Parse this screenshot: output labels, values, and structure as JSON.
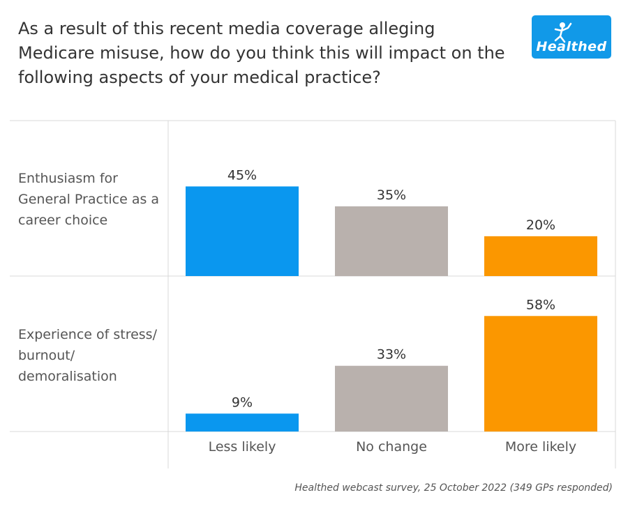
{
  "title": "As a result of this recent media coverage alleging Medicare misuse, how do you think this will impact on the following aspects of your medical practice?",
  "logo": {
    "text": "Healthed",
    "bg_color": "#1199e8"
  },
  "footnote": "Healthed webcast survey, 25 October 2022 (349 GPs responded)",
  "chart_data": {
    "type": "bar",
    "row_labels": [
      [
        "Enthusiasm for",
        "General Practice as a",
        "career choice"
      ],
      [
        "Experience of stress/",
        "burnout/",
        "demoralisation"
      ]
    ],
    "categories": [
      "Less likely",
      "No change",
      "More likely"
    ],
    "colors": [
      "#0a97ef",
      "#b9b1ad",
      "#fb9700"
    ],
    "rows": [
      {
        "values": [
          45,
          35,
          20
        ],
        "labels": [
          "45%",
          "35%",
          "20%"
        ]
      },
      {
        "values": [
          9,
          33,
          58
        ],
        "labels": [
          "9%",
          "33%",
          "58%"
        ]
      }
    ],
    "ylim": [
      0,
      70
    ],
    "grid": true
  }
}
